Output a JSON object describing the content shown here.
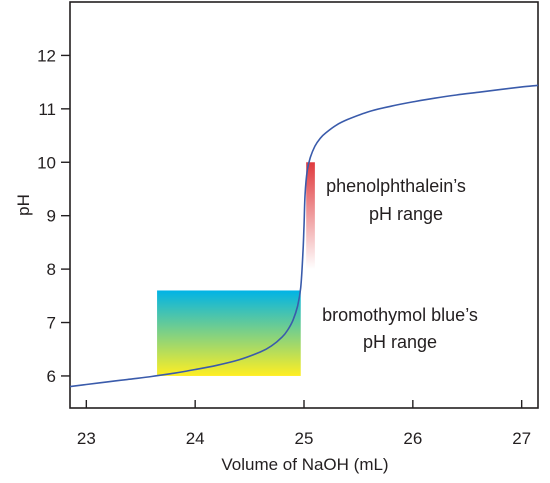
{
  "chart_data": {
    "type": "line",
    "xlabel": "Volume of NaOH (mL)",
    "ylabel": "pH",
    "xlim": [
      22.85,
      27.15
    ],
    "ylim": [
      5.4,
      13.0
    ],
    "x_ticks": [
      23,
      24,
      25,
      26,
      27
    ],
    "x_tick_labels": [
      "23",
      "24",
      "25",
      "26",
      "27"
    ],
    "y_ticks": [
      6,
      7,
      8,
      9,
      10,
      11,
      12
    ],
    "y_tick_labels": [
      "6",
      "7",
      "8",
      "9",
      "10",
      "11",
      "12"
    ],
    "grid": false,
    "series": [
      {
        "color": "#3a5bab",
        "x": [
          22.85,
          23.0,
          23.2,
          23.4,
          23.6,
          23.8,
          24.0,
          24.2,
          24.4,
          24.6,
          24.7,
          24.8,
          24.85,
          24.9,
          24.94,
          24.97,
          24.99,
          25.0,
          25.01,
          25.03,
          25.06,
          25.1,
          25.15,
          25.2,
          25.3,
          25.4,
          25.6,
          25.8,
          26.0,
          26.2,
          26.4,
          26.6,
          26.8,
          27.0,
          27.15
        ],
        "y": [
          5.8,
          5.84,
          5.89,
          5.94,
          5.99,
          6.05,
          6.12,
          6.2,
          6.3,
          6.45,
          6.56,
          6.73,
          6.86,
          7.05,
          7.3,
          7.65,
          8.3,
          8.8,
          9.4,
          9.85,
          10.1,
          10.3,
          10.45,
          10.55,
          10.7,
          10.8,
          10.95,
          11.05,
          11.13,
          11.2,
          11.26,
          11.31,
          11.36,
          11.41,
          11.44
        ]
      }
    ],
    "indicator_ranges": [
      {
        "label_line1": "phenolphthalein’s",
        "label_line2": "pH range",
        "x_range": [
          25.02,
          25.1
        ],
        "ph_range": [
          8.0,
          10.0
        ],
        "colors": [
          "#e03a3e",
          "#ffffff"
        ]
      },
      {
        "label_line1": "bromothymol blue’s",
        "label_line2": "pH range",
        "x_range": [
          23.65,
          24.97
        ],
        "ph_range": [
          6.0,
          7.6
        ],
        "colors": [
          "#00b3e6",
          "#ffee22"
        ]
      }
    ]
  }
}
